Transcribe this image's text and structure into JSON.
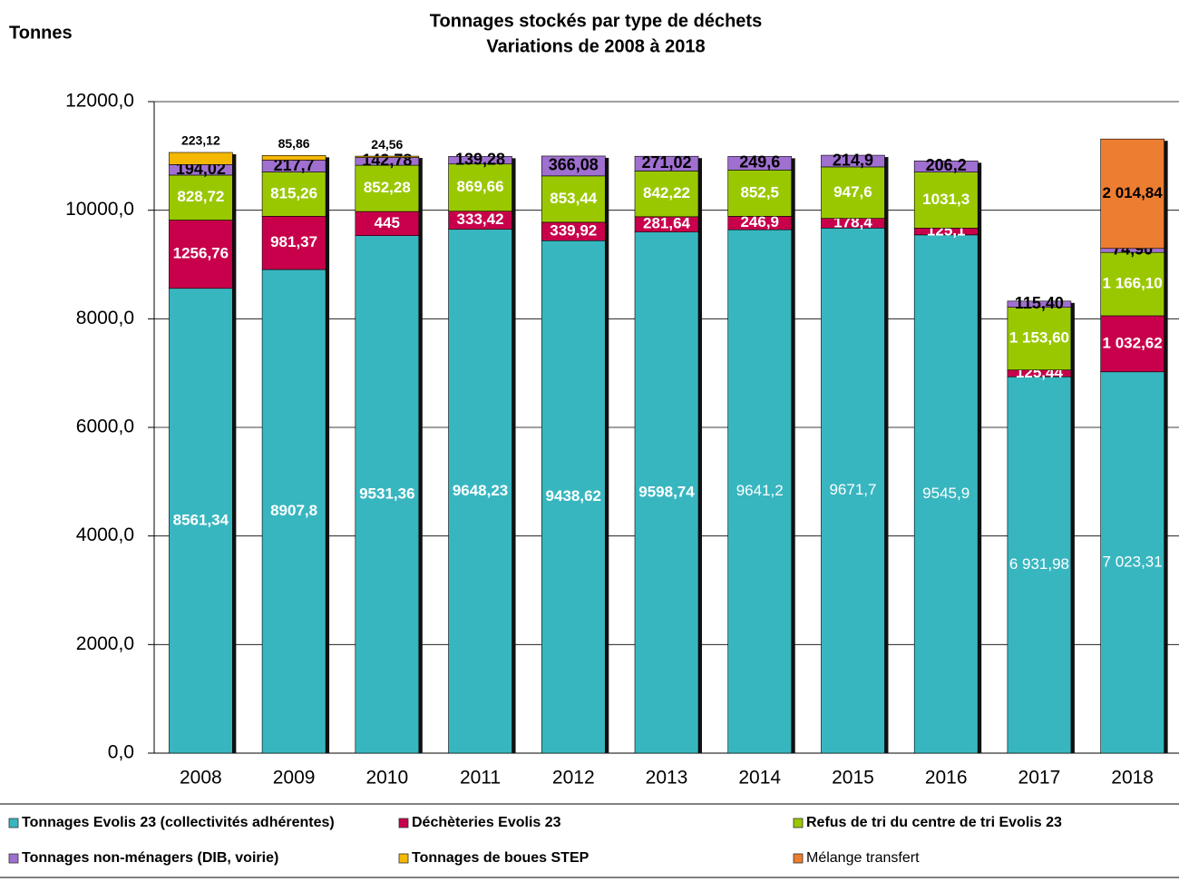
{
  "chart_data": {
    "type": "bar",
    "stacked": true,
    "title": "Tonnages stockés par type de déchets",
    "subtitle": "Variations de 2008 à 2018",
    "y_label": "Tonnes",
    "categories": [
      "2008",
      "2009",
      "2010",
      "2011",
      "2012",
      "2013",
      "2014",
      "2015",
      "2016",
      "2017",
      "2018"
    ],
    "ylim": [
      0,
      12000
    ],
    "yticks": [
      {
        "value": 0,
        "label": "0,0"
      },
      {
        "value": 2000,
        "label": "2000,0"
      },
      {
        "value": 4000,
        "label": "4000,0"
      },
      {
        "value": 6000,
        "label": "6000,0"
      },
      {
        "value": 8000,
        "label": "8000,0"
      },
      {
        "value": 10000,
        "label": "10000,0"
      },
      {
        "value": 12000,
        "label": "12000,0"
      }
    ],
    "grid": true,
    "series": [
      {
        "name": "Tonnages Evolis 23 (collectivités adhérentes)",
        "color": "#38b6c0",
        "values": [
          8561.34,
          8907.8,
          9531.36,
          9648.23,
          9438.62,
          9598.74,
          9641.2,
          9671.7,
          9545.9,
          6931.98,
          7023.31
        ],
        "value_labels": [
          "8561,34",
          "8907,8",
          "9531,36",
          "9648,23",
          "9438,62",
          "9598,74",
          "9641,2",
          "9671,7",
          "9545,9",
          "6 931,98",
          "7 023,31"
        ]
      },
      {
        "name": "Déchèteries Evolis 23",
        "color": "#c8004b",
        "values": [
          1256.76,
          981.37,
          445,
          333.42,
          339.92,
          281.64,
          246.9,
          178.4,
          125.1,
          125.44,
          1032.62
        ],
        "value_labels": [
          "1256,76",
          "981,37",
          "445",
          "333,42",
          "339,92",
          "281,64",
          "246,9",
          "178,4",
          "125,1",
          "125,44",
          "1 032,62"
        ]
      },
      {
        "name": "Refus de tri du centre de tri Evolis 23",
        "color": "#9ac800",
        "values": [
          828.72,
          815.26,
          852.28,
          869.66,
          853.44,
          842.22,
          852.5,
          947.6,
          1031.3,
          1153.6,
          1166.1
        ],
        "value_labels": [
          "828,72",
          "815,26",
          "852,28",
          "869,66",
          "853,44",
          "842,22",
          "852,5",
          "947,6",
          "1031,3",
          "1 153,60",
          "1 166,10"
        ]
      },
      {
        "name": "Tonnages non-ménagers (DIB, voirie)",
        "color": "#a070d0",
        "values": [
          194.02,
          217.7,
          142.78,
          139.28,
          366.08,
          271.02,
          249.6,
          214.9,
          206.2,
          115.4,
          74.9
        ],
        "value_labels": [
          "194,02",
          "217,7",
          "142,78",
          "139,28",
          "366,08",
          "271,02",
          "249,6",
          "214,9",
          "206,2",
          "115,40",
          "74,90"
        ]
      },
      {
        "name": "Tonnages de boues STEP",
        "color": "#f5b800",
        "values": [
          223.12,
          85.86,
          24.56,
          null,
          null,
          null,
          null,
          null,
          null,
          null,
          null
        ],
        "value_labels": [
          "223,12",
          "85,86",
          "24,56",
          null,
          null,
          null,
          null,
          null,
          null,
          null,
          null
        ]
      },
      {
        "name": "Mélange transfert",
        "color": "#ed7d31",
        "values": [
          null,
          null,
          null,
          null,
          null,
          null,
          null,
          null,
          null,
          null,
          2014.84
        ],
        "value_labels": [
          null,
          null,
          null,
          null,
          null,
          null,
          null,
          null,
          null,
          null,
          "2 014,84"
        ]
      }
    ]
  }
}
